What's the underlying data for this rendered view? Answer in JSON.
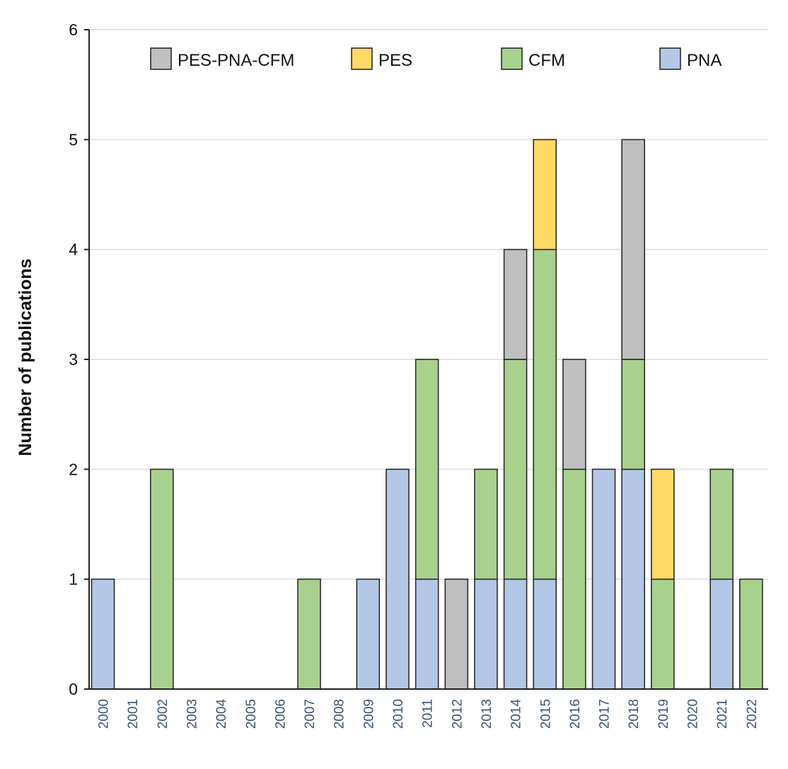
{
  "chart_data": {
    "type": "bar",
    "stacked": true,
    "title": "",
    "xlabel": "",
    "ylabel": "Number of publications",
    "ylim": [
      0,
      6
    ],
    "yticks": [
      "0",
      "1",
      "2",
      "3",
      "4",
      "5",
      "6"
    ],
    "grid": true,
    "legend_position": "top",
    "categories": [
      "2000",
      "2001",
      "2002",
      "2003",
      "2004",
      "2005",
      "2006",
      "2007",
      "2008",
      "2009",
      "2010",
      "2011",
      "2012",
      "2013",
      "2014",
      "2015",
      "2016",
      "2017",
      "2018",
      "2019",
      "2020",
      "2021",
      "2022"
    ],
    "series": [
      {
        "name": "PNA",
        "color": "#b4c7e7",
        "values": [
          1,
          0,
          0,
          0,
          0,
          0,
          0,
          0,
          0,
          1,
          2,
          1,
          0,
          1,
          1,
          1,
          0,
          2,
          2,
          0,
          0,
          1,
          0
        ]
      },
      {
        "name": "CFM",
        "color": "#a9d18e",
        "values": [
          0,
          0,
          2,
          0,
          0,
          0,
          0,
          1,
          0,
          0,
          0,
          2,
          0,
          1,
          2,
          3,
          2,
          0,
          1,
          1,
          0,
          1,
          1
        ]
      },
      {
        "name": "PES",
        "color": "#ffd966",
        "values": [
          0,
          0,
          0,
          0,
          0,
          0,
          0,
          0,
          0,
          0,
          0,
          0,
          0,
          0,
          0,
          1,
          0,
          0,
          0,
          1,
          0,
          0,
          0
        ]
      },
      {
        "name": "PES-PNA-CFM",
        "color": "#bfbfbf",
        "values": [
          0,
          0,
          0,
          0,
          0,
          0,
          0,
          0,
          0,
          0,
          0,
          0,
          1,
          0,
          1,
          0,
          1,
          0,
          2,
          0,
          0,
          0,
          0
        ]
      }
    ],
    "legend_order": [
      "PES-PNA-CFM",
      "PES",
      "CFM",
      "PNA"
    ]
  }
}
